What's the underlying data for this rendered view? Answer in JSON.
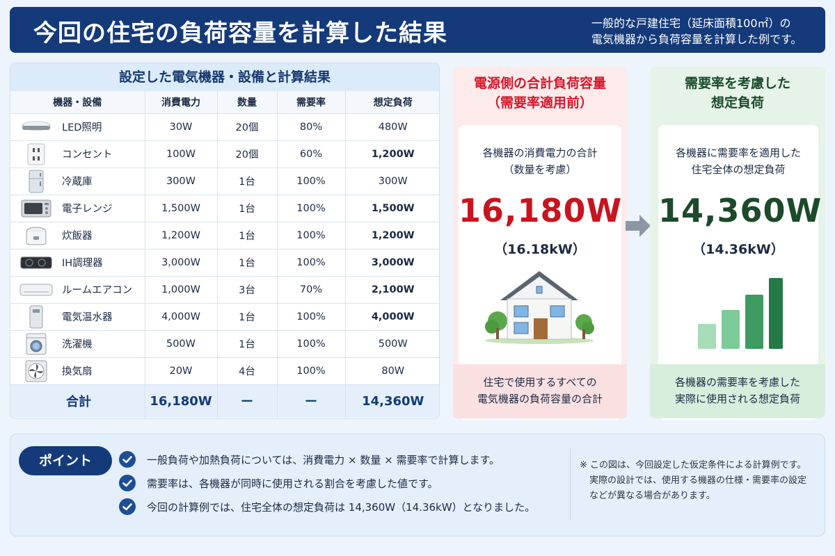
{
  "header": {
    "title": "今回の住宅の負荷容量を計算した結果",
    "subtitle_line1": "一般的な戸建住宅（延床面積100㎡）の",
    "subtitle_line2": "電気機器から負荷容量を計算した例です。"
  },
  "table": {
    "title": "設定した電気機器・設備と計算結果",
    "headers": [
      "機器・設備",
      "消費電力",
      "数量",
      "需要率",
      "想定負荷"
    ],
    "rows": [
      {
        "device": "LED照明",
        "power": "30W",
        "qty": "20個",
        "rate": "80%",
        "load": "480W",
        "icon": "ceiling-light-icon"
      },
      {
        "device": "コンセント",
        "power": "100W",
        "qty": "20個",
        "rate": "60%",
        "load": "1,200W",
        "icon": "outlet-icon"
      },
      {
        "device": "冷蔵庫",
        "power": "300W",
        "qty": "1台",
        "rate": "100%",
        "load": "300W",
        "icon": "refrigerator-icon"
      },
      {
        "device": "電子レンジ",
        "power": "1,500W",
        "qty": "1台",
        "rate": "100%",
        "load": "1,500W",
        "icon": "microwave-icon"
      },
      {
        "device": "炊飯器",
        "power": "1,200W",
        "qty": "1台",
        "rate": "100%",
        "load": "1,200W",
        "icon": "rice-cooker-icon"
      },
      {
        "device": "IH調理器",
        "power": "3,000W",
        "qty": "1台",
        "rate": "100%",
        "load": "3,000W",
        "icon": "ih-cooktop-icon"
      },
      {
        "device": "ルームエアコン",
        "power": "1,000W",
        "qty": "3台",
        "rate": "70%",
        "load": "2,100W",
        "icon": "air-conditioner-icon"
      },
      {
        "device": "電気温水器",
        "power": "4,000W",
        "qty": "1台",
        "rate": "100%",
        "load": "4,000W",
        "icon": "water-heater-icon"
      },
      {
        "device": "洗濯機",
        "power": "500W",
        "qty": "1台",
        "rate": "100%",
        "load": "500W",
        "icon": "washing-machine-icon"
      },
      {
        "device": "換気扇",
        "power": "20W",
        "qty": "4台",
        "rate": "100%",
        "load": "80W",
        "icon": "ventilation-fan-icon"
      }
    ],
    "total": {
      "label": "合計",
      "power": "16,180W",
      "qty": "ー",
      "rate": "ー",
      "load": "14,360W"
    }
  },
  "supply_panel": {
    "title_line1": "電源側の合計負荷容量",
    "title_line2": "（需要率適用前）",
    "desc_line1": "各機器の消費電力の合計",
    "desc_line2": "（数量を考慮）",
    "value": "16,180W",
    "value_kw": "（16.18kW）",
    "foot_line1": "住宅で使用するすべての",
    "foot_line2": "電気機器の負荷容量の合計",
    "icon": "house-icon"
  },
  "demand_panel": {
    "title_line1": "需要率を考慮した",
    "title_line2": "想定負荷",
    "desc_line1": "各機器に需要率を適用した",
    "desc_line2": "住宅全体の想定負荷",
    "value": "14,360W",
    "value_kw": "（14.36kW）",
    "foot_line1": "各機器の需要率を考慮した",
    "foot_line2": "実際に使用される想定負荷",
    "icon": "bar-graph-icon"
  },
  "points": {
    "badge": "ポイント",
    "items": [
      "一般負荷や加熱負荷については、消費電力 × 数量 × 需要率で計算します。",
      "需要率は、各機器が同時に使用される割合を考慮した値です。",
      "今回の計算例では、住宅全体の想定負荷は 14,360W（14.36kW）となりました。"
    ],
    "note_line1": "※ この図は、今回設定した仮定条件による計算例です。",
    "note_line2": "実際の設計では、使用する機器の仕様・需要率の設定",
    "note_line3": "などが異なる場合があります。"
  },
  "colors": {
    "navy": "#143a7a",
    "red": "#c8141f",
    "green": "#1c4a2a",
    "check": "#1d4e96"
  }
}
